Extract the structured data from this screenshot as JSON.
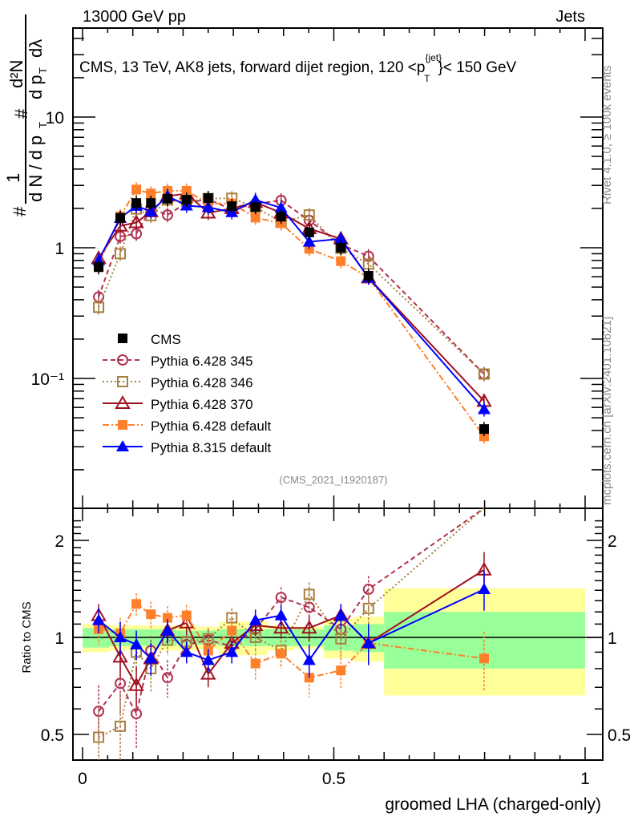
{
  "header": {
    "left": "13000 GeV pp",
    "right": "Jets"
  },
  "side_text": {
    "upper": "Rivet 4.1.0, ≥ 100k events",
    "lower": "mcplots.cern.ch [arXiv:2401.10621]"
  },
  "chart_data": [
    {
      "type": "line",
      "panel": "main",
      "title": "CMS, 13 TeV, AK8 jets, forward dijet region, 120 <p_T^{jet}< 150 GeV",
      "title_parts": {
        "before": "CMS, 13 TeV, AK8 jets, forward dijet region, 120 <p",
        "sup": "{jet}",
        "sub": "T",
        "after": "}< 150 GeV"
      },
      "ylabel": "1/(dN/dp_T) d²N/(dp_T dλ)",
      "ylabel_parts": {
        "hash": "#",
        "one": "1",
        "den": "d N / d p",
        "sub": "T",
        "num": "d²N",
        "den2": "d p",
        "den2_tail": "dλ",
        "sub2": "T"
      },
      "yscale": "log",
      "ylim": [
        0.016,
        50
      ],
      "xlim": [
        -0.02,
        1.03
      ],
      "yticks": [
        {
          "value": 10,
          "label": "10"
        },
        {
          "value": 1,
          "label": "1"
        },
        {
          "value": 0.1,
          "label": "10⁻¹"
        }
      ],
      "watermark": "(CMS_2021_I1920187)",
      "legend_position": "bottom-left",
      "x": [
        0.032,
        0.075,
        0.107,
        0.136,
        0.169,
        0.207,
        0.25,
        0.297,
        0.344,
        0.395,
        0.451,
        0.514,
        0.569,
        0.799
      ],
      "series": [
        {
          "name": "CMS",
          "key": "cms",
          "values": [
            0.71,
            1.69,
            2.2,
            2.2,
            2.37,
            2.33,
            2.4,
            2.08,
            2.05,
            1.73,
            1.31,
            1.0,
            0.61,
            0.041
          ],
          "color": "#000000"
        },
        {
          "name": "Pythia 6.428 345",
          "key": "p345",
          "values": [
            0.42,
            1.22,
            1.28,
            2.0,
            1.78,
            2.21,
            2.35,
            1.96,
            2.17,
            2.3,
            1.62,
            1.06,
            0.86,
            0.108
          ],
          "color": "#b03050"
        },
        {
          "name": "Pythia 6.428 346",
          "key": "p346",
          "values": [
            0.35,
            0.9,
            1.98,
            1.76,
            2.32,
            2.26,
            2.38,
            2.39,
            2.05,
            1.57,
            1.78,
            0.99,
            0.75,
            0.108
          ],
          "color": "#a88040"
        },
        {
          "name": "Pythia 6.428 370",
          "key": "p370",
          "values": [
            0.83,
            1.47,
            1.56,
            1.89,
            2.49,
            2.59,
            1.85,
            2.0,
            2.23,
            1.85,
            1.4,
            1.17,
            0.59,
            0.067
          ],
          "color": "#a01020"
        },
        {
          "name": "Pythia 6.428 default",
          "key": "p6def",
          "values": [
            0.75,
            1.74,
            2.79,
            2.6,
            2.73,
            2.73,
            2.18,
            2.18,
            1.7,
            1.54,
            0.98,
            0.79,
            0.59,
            0.036
          ],
          "color": "#ff7f2a"
        },
        {
          "name": "Pythia 8.315 default",
          "key": "p8def",
          "values": [
            0.8,
            1.69,
            2.09,
            1.89,
            2.49,
            2.1,
            2.04,
            1.87,
            2.32,
            2.02,
            1.11,
            1.17,
            0.59,
            0.058
          ],
          "color": "#0000ff"
        }
      ]
    },
    {
      "type": "line",
      "panel": "ratio",
      "ylabel": "Ratio to CMS",
      "xlabel": "groomed LHA (charged-only)",
      "yscale": "log",
      "ylim": [
        0.4,
        2.35
      ],
      "xlim": [
        -0.02,
        1.03
      ],
      "yticks": [
        {
          "value": 2,
          "label": "2"
        },
        {
          "value": 1,
          "label": "1"
        },
        {
          "value": 0.5,
          "label": "0.5"
        }
      ],
      "xticks": [
        {
          "value": 0,
          "label": "0"
        },
        {
          "value": 0.5,
          "label": "0.5"
        },
        {
          "value": 1,
          "label": "1"
        }
      ],
      "bin_edges": [
        0.0,
        0.053,
        0.091,
        0.121,
        0.151,
        0.187,
        0.227,
        0.271,
        0.321,
        0.368,
        0.421,
        0.48,
        0.54,
        0.6,
        1.0
      ],
      "band_inner": [
        0.07,
        0.06,
        0.06,
        0.06,
        0.06,
        0.05,
        0.05,
        0.06,
        0.06,
        0.06,
        0.06,
        0.09,
        0.1,
        0.2
      ],
      "band_outer": [
        0.1,
        0.09,
        0.09,
        0.09,
        0.09,
        0.09,
        0.08,
        0.12,
        0.12,
        0.09,
        0.08,
        0.14,
        0.16,
        0.42
      ],
      "band_outer_low": [
        0.1,
        0.09,
        0.09,
        0.09,
        0.09,
        0.09,
        0.08,
        0.12,
        0.12,
        0.09,
        0.08,
        0.14,
        0.16,
        0.34
      ],
      "x": [
        0.032,
        0.075,
        0.107,
        0.136,
        0.169,
        0.207,
        0.25,
        0.297,
        0.344,
        0.395,
        0.451,
        0.514,
        0.569,
        0.799
      ],
      "series": [
        {
          "name": "Pythia 6.428 345",
          "key": "p345",
          "values": [
            0.59,
            0.72,
            0.58,
            0.91,
            0.75,
            0.95,
            0.98,
            0.94,
            1.06,
            1.33,
            1.24,
            1.06,
            1.41,
            2.62
          ],
          "errors": [
            0.12,
            0.14,
            0.13,
            0.1,
            0.1,
            0.1,
            0.08,
            0.08,
            0.1,
            0.1,
            0.12,
            0.12,
            0.14,
            0.3
          ]
        },
        {
          "name": "Pythia 6.428 346",
          "key": "p346",
          "values": [
            0.49,
            0.53,
            0.9,
            0.8,
            0.98,
            0.97,
            0.99,
            1.15,
            1.0,
            0.91,
            1.36,
            0.99,
            1.23,
            2.62
          ],
          "errors": [
            0.12,
            0.14,
            0.13,
            0.12,
            0.1,
            0.1,
            0.08,
            0.08,
            0.1,
            0.1,
            0.12,
            0.12,
            0.14,
            0.3
          ]
        },
        {
          "name": "Pythia 6.428 370",
          "key": "p370",
          "values": [
            1.17,
            0.87,
            0.71,
            0.86,
            1.05,
            1.11,
            0.77,
            0.96,
            1.09,
            1.07,
            1.07,
            1.17,
            0.96,
            1.62
          ],
          "errors": [
            0.1,
            0.12,
            0.1,
            0.1,
            0.09,
            0.09,
            0.07,
            0.08,
            0.08,
            0.08,
            0.1,
            0.1,
            0.12,
            0.22
          ]
        },
        {
          "name": "Pythia 6.428 default",
          "key": "p6def",
          "values": [
            1.06,
            1.03,
            1.27,
            1.18,
            1.15,
            1.17,
            0.91,
            1.05,
            0.83,
            0.89,
            0.75,
            0.79,
            0.96,
            0.86
          ],
          "errors": [
            0.11,
            0.12,
            0.1,
            0.11,
            0.1,
            0.09,
            0.08,
            0.1,
            0.09,
            0.09,
            0.1,
            0.1,
            0.14,
            0.18
          ]
        },
        {
          "name": "Pythia 8.315 default",
          "key": "p8def",
          "values": [
            1.13,
            1.0,
            0.95,
            0.86,
            1.05,
            0.9,
            0.85,
            0.9,
            1.13,
            1.17,
            0.85,
            1.17,
            0.96,
            1.41
          ],
          "errors": [
            0.1,
            0.12,
            0.1,
            0.1,
            0.09,
            0.07,
            0.07,
            0.07,
            0.09,
            0.09,
            0.1,
            0.1,
            0.14,
            0.2
          ]
        }
      ]
    }
  ],
  "colors": {
    "band_inner": "#99ff99",
    "band_outer": "#ffff99",
    "cms": "#000000",
    "p345": "#b03050",
    "p346": "#a88040",
    "p370": "#a01020",
    "p6def": "#ff7f2a",
    "p8def": "#0000ff"
  }
}
